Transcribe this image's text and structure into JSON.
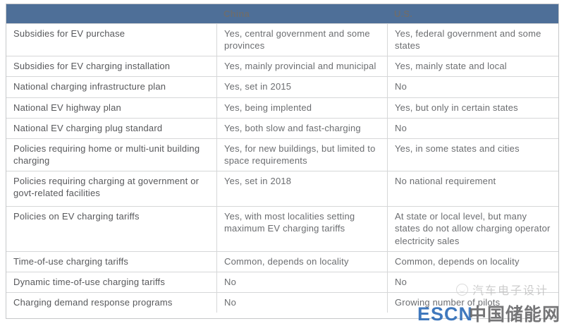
{
  "header": {
    "blank": "",
    "china": "China",
    "us": "U.S."
  },
  "rows": [
    {
      "label": "Subsidies for EV purchase",
      "china": "Yes, central government and some provinces",
      "us": "Yes, federal government and some states"
    },
    {
      "label": "Subsidies for EV charging installation",
      "china": "Yes, mainly provincial and municipal",
      "us": "Yes, mainly state and local"
    },
    {
      "label": "National charging infrastructure plan",
      "china": "Yes, set in 2015",
      "us": "No"
    },
    {
      "label": "National EV highway plan",
      "china": "Yes, being implented",
      "us": "Yes, but only in certain states"
    },
    {
      "label": "National EV charging plug standard",
      "china": "Yes, both slow and fast-charging",
      "us": "No"
    },
    {
      "label": "Policies requiring home or multi-unit building charging",
      "china": "Yes, for new buildings, but limited to space requirements",
      "us": "Yes, in some states and cities"
    },
    {
      "label": "Policies requiring charging at government or govt-related facilities",
      "china": "Yes, set in 2018",
      "us": "No national requirement"
    },
    {
      "label": "Policies on EV charging tariffs",
      "china": "Yes, with most localities setting maximum EV charging tariffs",
      "us": "At state or local level, but many states do not allow charging operator electricity sales"
    },
    {
      "label": "Time-of-use charging tariffs",
      "china": "Common, depends on locality",
      "us": "Common, depends on locality"
    },
    {
      "label": "Dynamic time-of-use charging tariffs",
      "china": "No",
      "us": "No"
    },
    {
      "label": "Charging demand response programs",
      "china": "No",
      "us": "Growing number of pilots"
    }
  ],
  "watermarks": {
    "wechat_account": "汽车电子设计",
    "escn_latin": "ESCN",
    "escn_cn": "中国储能网"
  },
  "colors": {
    "header_bg": "#4e6f98",
    "header_text": "#ffffff",
    "label_text": "#57585b",
    "value_text": "#6b6d70",
    "row_border": "#d6d7d8",
    "outer_border": "#c6c8ca",
    "escn_blue": "#2f6db8"
  }
}
